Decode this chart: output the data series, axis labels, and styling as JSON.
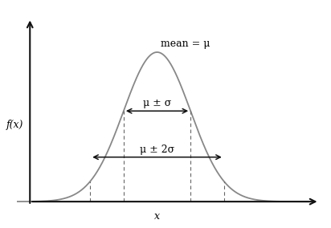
{
  "mu": 0,
  "sigma": 1,
  "x_range": [
    -4.5,
    4.5
  ],
  "curve_color": "#888888",
  "line_color": "#000000",
  "dashed_color": "#666666",
  "background_color": "#ffffff",
  "title_text": "mean = μ",
  "ylabel_text": "f(x)",
  "xlabel_text": "x",
  "sigma1_label": "μ ± σ",
  "sigma2_label": "μ ± 2σ",
  "arrow_color": "#111111",
  "axis_color": "#111111",
  "curve_lw": 1.3,
  "axis_lw": 1.5,
  "arrow_mutation_scale": 10,
  "figsize": [
    4.12,
    2.84
  ],
  "dpi": 100,
  "x_axis_y": 0.0,
  "yaxis_x": -3.8,
  "xlim": [
    -4.2,
    5.0
  ],
  "ylim": [
    -0.04,
    0.52
  ]
}
